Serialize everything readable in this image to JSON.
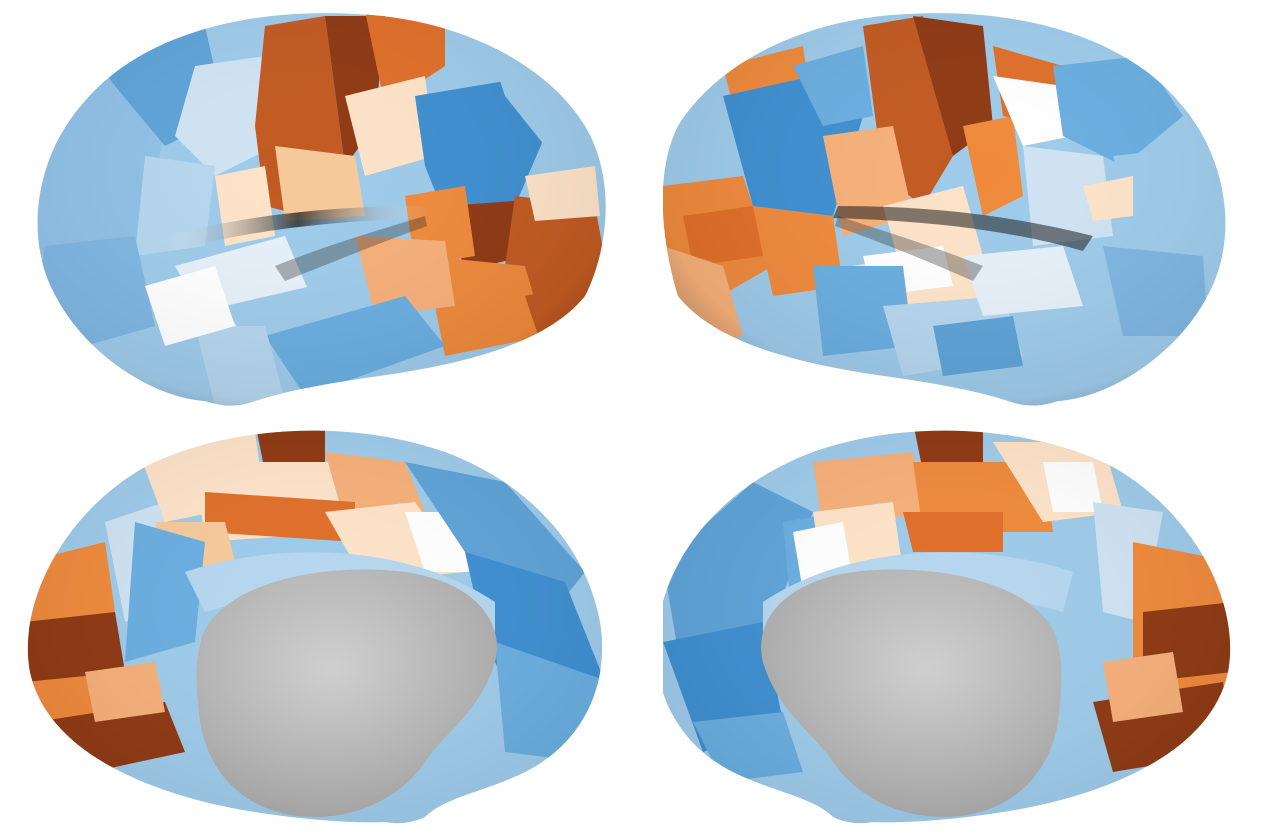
{
  "figure": {
    "background": "#ffffff",
    "views": [
      {
        "id": "left-lateral",
        "hemisphere": "left",
        "view": "lateral"
      },
      {
        "id": "right-lateral",
        "hemisphere": "right",
        "view": "lateral"
      },
      {
        "id": "left-medial",
        "hemisphere": "left",
        "view": "medial"
      },
      {
        "id": "right-medial",
        "hemisphere": "right",
        "view": "medial"
      }
    ],
    "colormap": {
      "name": "diverging-blue-orange",
      "stops": [
        "#3f8fd1",
        "#6aaee0",
        "#9ecbea",
        "#cfe3f3",
        "#ffffff",
        "#fde3c8",
        "#f6b07a",
        "#ef8a3c",
        "#c25a22",
        "#8f3a14"
      ]
    },
    "medial_wall_color": "#c4c4c4"
  }
}
